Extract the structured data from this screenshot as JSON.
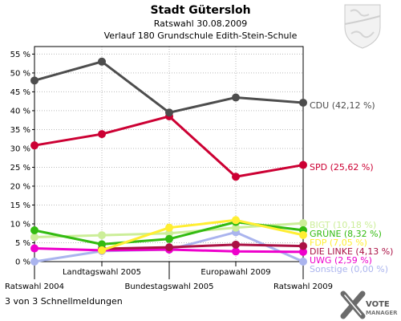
{
  "header": {
    "title": "Stadt Gütersloh",
    "subtitle1": "Ratswahl 30.08.2009",
    "subtitle2": "Verlauf 180 Grundschule Edith-Stein-Schule"
  },
  "footer": {
    "status": "3 von 3 Schnellmeldungen"
  },
  "brand": {
    "name": "VOTE",
    "sub": "MANAGER",
    "crest": "coat-of-arms-icon"
  },
  "colors": {
    "background": "#ffffff",
    "plot_border": "#000000",
    "grid": "#bbbbbb"
  },
  "chart_data": {
    "type": "line",
    "categories": [
      "Ratswahl 2004",
      "Landtagswahl 2005",
      "Bundestagswahl 2005",
      "Europawahl 2009",
      "Ratswahl 2009"
    ],
    "ylim": [
      0,
      57
    ],
    "yticks": [
      0,
      5,
      10,
      15,
      20,
      25,
      30,
      35,
      40,
      45,
      50,
      55
    ],
    "ytick_labels": [
      "0 %",
      "5 %",
      "10 %",
      "15 %",
      "20 %",
      "25 %",
      "30 %",
      "35 %",
      "40 %",
      "45 %",
      "50 %",
      "55 %"
    ],
    "grid": true,
    "series": [
      {
        "name": "CDU",
        "label": "CDU (42,12 %)",
        "color": "#4d4d4d",
        "values": [
          48.0,
          53.0,
          39.5,
          43.5,
          42.12
        ]
      },
      {
        "name": "SPD",
        "label": "SPD (25,62 %)",
        "color": "#cc0033",
        "values": [
          30.8,
          33.8,
          38.5,
          22.5,
          25.62
        ]
      },
      {
        "name": "GRÜNE",
        "label": "GRÜNE (8,32 %)",
        "color": "#33bb11",
        "values": [
          8.3,
          4.6,
          6.0,
          10.5,
          8.32
        ]
      },
      {
        "name": "BIGT",
        "label": "BIGT (10,18 %)",
        "color": "#ccee99",
        "values": [
          6.5,
          7.0,
          7.5,
          9.0,
          10.18
        ]
      },
      {
        "name": "FDP",
        "label": "FDP (7,05 %)",
        "color": "#ffee33",
        "values": [
          null,
          3.0,
          9.0,
          11.0,
          7.05
        ]
      },
      {
        "name": "DIE LINKE",
        "label": "DIE LINKE (4,13 %)",
        "color": "#aa1144",
        "values": [
          null,
          3.4,
          3.8,
          4.5,
          4.13
        ]
      },
      {
        "name": "UWG",
        "label": "UWG (2,59 %)",
        "color": "#ee00cc",
        "values": [
          3.5,
          3.0,
          3.2,
          2.7,
          2.59
        ]
      },
      {
        "name": "Sonstige",
        "label": "Sonstige (0,00 %)",
        "color": "#aab4ee",
        "values": [
          0.0,
          2.8,
          3.2,
          7.8,
          0.0
        ]
      }
    ]
  }
}
